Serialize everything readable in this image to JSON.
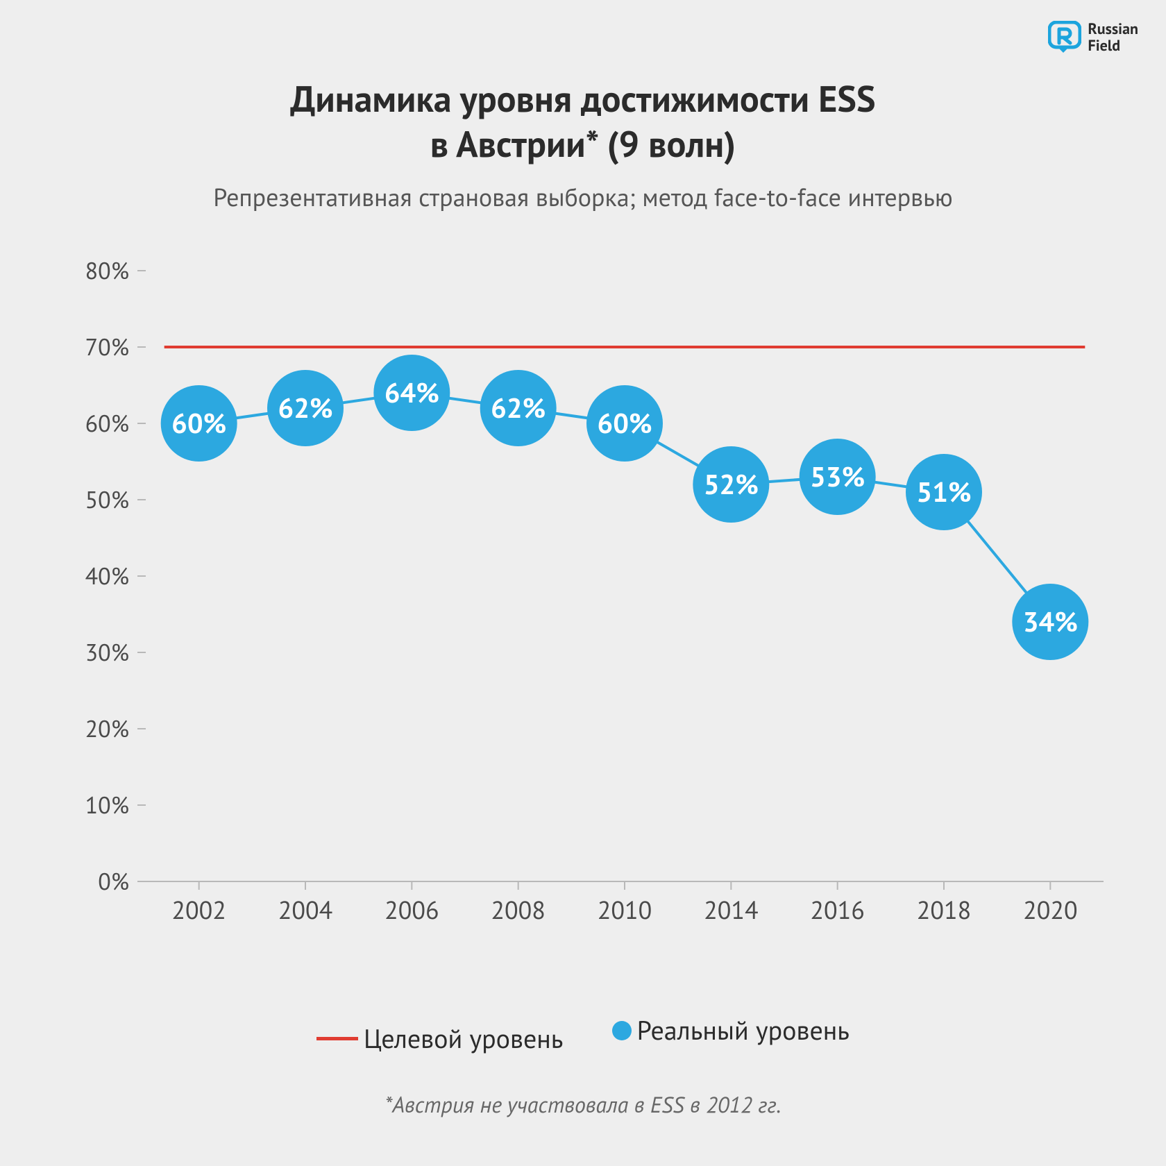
{
  "brand": {
    "line1": "Russian",
    "line2": "Field",
    "logo_color": "#1ca4dd"
  },
  "title_line1": "Динамика уровня достижимости ESS",
  "title_line2": "в Австрии* (9 волн)",
  "subtitle": "Репрезентативная страновая выборка; метод face-to-face интервью",
  "footnote": "*Австрия не участвовала в ESS в 2012 гг.",
  "legend": {
    "target": "Целевой уровень",
    "real": "Реальный уровень"
  },
  "chart": {
    "type": "line",
    "y_ticks": [
      0,
      10,
      20,
      30,
      40,
      50,
      60,
      70,
      80
    ],
    "y_label_suffix": "%",
    "ylim": [
      0,
      80
    ],
    "x_categories": [
      "2002",
      "2004",
      "2006",
      "2008",
      "2010",
      "2014",
      "2016",
      "2018",
      "2020"
    ],
    "target_value": 70,
    "target_color": "#e03c31",
    "target_line_width": 4,
    "series": {
      "real": {
        "values": [
          60,
          62,
          64,
          62,
          60,
          52,
          53,
          51,
          34
        ],
        "labels": [
          "60%",
          "62%",
          "64%",
          "62%",
          "60%",
          "52%",
          "53%",
          "51%",
          "34%"
        ],
        "line_color": "#2ca8e0",
        "line_width": 4,
        "marker_color": "#2ca8e0",
        "marker_radius": 55,
        "label_color": "#ffffff",
        "label_fontsize": 40
      }
    },
    "tick_color": "#b8b8b8",
    "axis_color": "#b8b8b8",
    "background_color": "#eeeeee",
    "title_fontsize": 52,
    "subtitle_fontsize": 36,
    "tick_fontsize": 34,
    "xtick_fontsize": 36
  }
}
